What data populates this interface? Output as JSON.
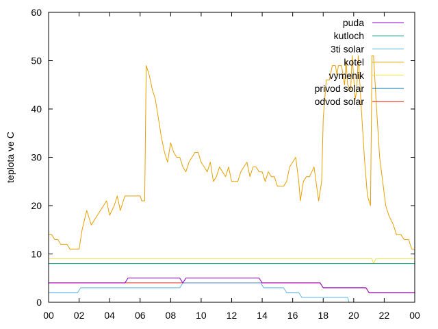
{
  "chart_data": {
    "type": "line",
    "title": "",
    "xlabel": "",
    "ylabel": "teplota ve C",
    "xlim": [
      0,
      24
    ],
    "ylim": [
      0,
      60
    ],
    "x_ticks": [
      "00",
      "02",
      "04",
      "06",
      "08",
      "10",
      "12",
      "14",
      "16",
      "18",
      "20",
      "22",
      "00"
    ],
    "y_ticks": [
      "0",
      "10",
      "20",
      "30",
      "40",
      "50",
      "60"
    ],
    "grid": false,
    "legend_position": "top-right",
    "series": [
      {
        "name": "puda",
        "color": "#9400d3",
        "points": [
          [
            0,
            4
          ],
          [
            5.0,
            4
          ],
          [
            5.2,
            5
          ],
          [
            8.6,
            5
          ],
          [
            8.8,
            4
          ],
          [
            9.0,
            5
          ],
          [
            13.8,
            5
          ],
          [
            14.0,
            4
          ],
          [
            17.8,
            4
          ],
          [
            18.0,
            3
          ],
          [
            20.8,
            3
          ],
          [
            21.0,
            2
          ],
          [
            24,
            2
          ]
        ]
      },
      {
        "name": "kutloch",
        "color": "#009e73",
        "points": [
          [
            0,
            8
          ],
          [
            24,
            8
          ]
        ]
      },
      {
        "name": "3ti solar",
        "color": "#56b4e9",
        "points": [
          [
            0,
            2
          ],
          [
            1.9,
            2
          ],
          [
            2.1,
            3
          ],
          [
            8.6,
            3
          ],
          [
            8.8,
            4
          ],
          [
            13.9,
            4
          ],
          [
            14.1,
            3
          ],
          [
            15.4,
            3
          ],
          [
            15.6,
            2
          ],
          [
            16.4,
            2
          ],
          [
            16.6,
            1
          ],
          [
            19.6,
            1
          ],
          [
            19.7,
            0
          ]
        ]
      },
      {
        "name": "kotel",
        "color": "#e69f00",
        "points": [
          [
            0,
            14
          ],
          [
            0.2,
            14
          ],
          [
            0.4,
            13
          ],
          [
            0.6,
            13
          ],
          [
            0.8,
            12
          ],
          [
            1.2,
            12
          ],
          [
            1.4,
            11
          ],
          [
            2.0,
            11
          ],
          [
            2.2,
            15
          ],
          [
            2.5,
            19
          ],
          [
            2.8,
            16
          ],
          [
            3.2,
            18
          ],
          [
            3.6,
            20
          ],
          [
            3.8,
            21
          ],
          [
            4.0,
            18
          ],
          [
            4.3,
            20
          ],
          [
            4.5,
            22
          ],
          [
            4.7,
            19
          ],
          [
            5.0,
            22
          ],
          [
            6.0,
            22
          ],
          [
            6.1,
            21
          ],
          [
            6.3,
            21
          ],
          [
            6.4,
            49
          ],
          [
            6.6,
            47
          ],
          [
            6.8,
            44
          ],
          [
            7.0,
            42
          ],
          [
            7.2,
            38
          ],
          [
            7.4,
            34
          ],
          [
            7.6,
            31
          ],
          [
            7.8,
            29
          ],
          [
            8.0,
            33
          ],
          [
            8.2,
            31
          ],
          [
            8.4,
            30
          ],
          [
            8.6,
            30
          ],
          [
            8.8,
            28
          ],
          [
            9.0,
            27
          ],
          [
            9.2,
            29
          ],
          [
            9.4,
            30
          ],
          [
            9.6,
            31
          ],
          [
            9.8,
            31
          ],
          [
            10.0,
            29
          ],
          [
            10.2,
            28
          ],
          [
            10.4,
            27
          ],
          [
            10.6,
            29
          ],
          [
            10.8,
            25
          ],
          [
            11.0,
            26
          ],
          [
            11.2,
            28
          ],
          [
            11.4,
            27
          ],
          [
            11.6,
            26
          ],
          [
            11.8,
            28
          ],
          [
            12.0,
            25
          ],
          [
            12.4,
            25
          ],
          [
            12.6,
            27
          ],
          [
            12.8,
            28
          ],
          [
            13.0,
            29
          ],
          [
            13.2,
            26
          ],
          [
            13.4,
            28
          ],
          [
            13.6,
            28
          ],
          [
            13.8,
            27
          ],
          [
            14.0,
            27
          ],
          [
            14.2,
            25
          ],
          [
            14.4,
            27
          ],
          [
            14.6,
            26
          ],
          [
            14.8,
            26
          ],
          [
            15.0,
            24
          ],
          [
            15.4,
            24
          ],
          [
            15.6,
            25
          ],
          [
            15.8,
            28
          ],
          [
            16.0,
            29
          ],
          [
            16.2,
            30
          ],
          [
            16.4,
            25
          ],
          [
            16.5,
            21
          ],
          [
            16.7,
            25
          ],
          [
            16.9,
            26
          ],
          [
            17.1,
            26
          ],
          [
            17.4,
            28
          ],
          [
            17.7,
            21
          ],
          [
            17.9,
            25
          ],
          [
            18.0,
            38
          ],
          [
            18.2,
            46
          ],
          [
            18.4,
            46
          ],
          [
            18.6,
            49
          ],
          [
            18.8,
            49
          ],
          [
            18.9,
            47
          ],
          [
            19.0,
            49
          ],
          [
            19.2,
            49
          ],
          [
            19.4,
            45
          ],
          [
            19.5,
            50
          ],
          [
            19.6,
            45
          ],
          [
            19.8,
            44
          ],
          [
            19.9,
            51
          ],
          [
            20.1,
            42
          ],
          [
            20.2,
            44
          ],
          [
            20.3,
            51
          ],
          [
            20.5,
            40
          ],
          [
            20.7,
            30
          ],
          [
            20.9,
            22
          ],
          [
            21.1,
            20
          ],
          [
            21.2,
            51
          ],
          [
            21.3,
            51
          ],
          [
            21.5,
            40
          ],
          [
            21.7,
            30
          ],
          [
            21.9,
            25
          ],
          [
            22.1,
            20
          ],
          [
            22.3,
            18
          ],
          [
            22.6,
            16
          ],
          [
            22.8,
            14
          ],
          [
            23.1,
            14
          ],
          [
            23.3,
            13
          ],
          [
            23.6,
            13
          ],
          [
            23.8,
            11
          ],
          [
            24,
            11
          ]
        ]
      },
      {
        "name": "vymenik",
        "color": "#f0e442",
        "points": [
          [
            0,
            9
          ],
          [
            21.2,
            9
          ],
          [
            21.3,
            8
          ],
          [
            21.45,
            9
          ],
          [
            24,
            9
          ]
        ]
      },
      {
        "name": "privod solar",
        "color": "#0072b2",
        "points": []
      },
      {
        "name": "odvod solar",
        "color": "#e51e10",
        "points": [
          [
            0,
            4
          ],
          [
            5.0,
            4
          ],
          [
            5.2,
            4
          ],
          [
            8.6,
            4
          ],
          [
            8.8,
            4
          ],
          [
            13.8,
            4
          ],
          [
            14.0,
            4
          ],
          [
            17.8,
            4
          ],
          [
            18.0,
            3
          ],
          [
            20.8,
            3
          ],
          [
            21.0,
            2
          ],
          [
            24,
            2
          ]
        ]
      }
    ]
  }
}
